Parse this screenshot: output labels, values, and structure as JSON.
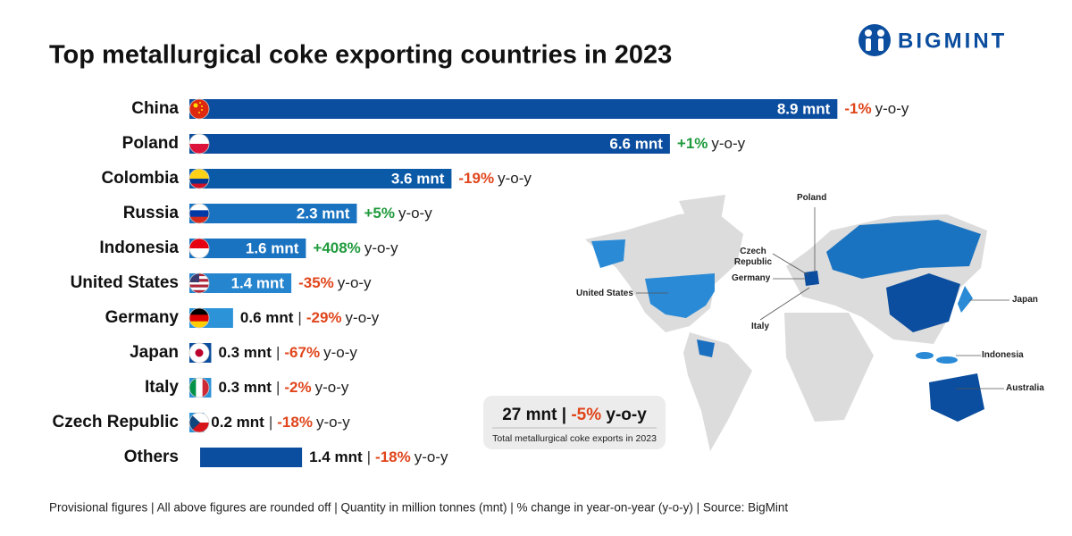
{
  "chart_data": {
    "type": "bar",
    "orientation": "horizontal",
    "title": "Top metallurgical coke exporting countries in 2023",
    "categories": [
      "China",
      "Poland",
      "Colombia",
      "Russia",
      "Indonesia",
      "United States",
      "Germany",
      "Japan",
      "Italy",
      "Czech Republic",
      "Others"
    ],
    "values": [
      8.9,
      6.6,
      3.6,
      2.3,
      1.6,
      1.4,
      0.6,
      0.3,
      0.3,
      0.2,
      1.4
    ],
    "value_labels": [
      "8.9 mnt",
      "6.6 mnt",
      "3.6 mnt",
      "2.3 mnt",
      "1.6 mnt",
      "1.4 mnt",
      "0.6 mnt",
      "0.3 mnt",
      "0.3 mnt",
      "0.2 mnt",
      "1.4 mnt"
    ],
    "label_positions": [
      "inside",
      "inside",
      "inside",
      "inside",
      "inside",
      "inside",
      "outside",
      "outside",
      "outside",
      "outside",
      "outside"
    ],
    "colors": [
      "#0b4d9e",
      "#0b4d9e",
      "#0b5aa8",
      "#1a73c0",
      "#1a73c0",
      "#2685cf",
      "#2d93d8",
      "#0b4d9e",
      "#2d93d8",
      "#2d93d8",
      "#0b4d9e"
    ],
    "yoy_values": [
      -1,
      1,
      -19,
      5,
      408,
      -35,
      -29,
      -67,
      -2,
      -18,
      -18
    ],
    "yoy_labels": [
      "-1%",
      "+1%",
      "-19%",
      "+5%",
      "+408%",
      "-35%",
      "-29%",
      "-67%",
      "-2%",
      "-18%",
      "-18%"
    ],
    "yoy_suffix": "y-o-y",
    "separator": "|",
    "positive_color": "#1f9a3c",
    "negative_color": "#e0451b"
  },
  "logo": "BIGMINT",
  "summary": {
    "total": "27 mnt",
    "separator": "|",
    "change": "-5%",
    "suffix": "y-o-y",
    "caption": "Total metallurgical coke exports in 2023"
  },
  "map": {
    "labels": [
      "Poland",
      "Czech Republic",
      "Germany",
      "United States",
      "Italy",
      "Japan",
      "Indonesia",
      "Australia"
    ]
  },
  "footer": "Provisional figures | All above figures are rounded off | Quantity in million tonnes (mnt) | % change in year-on-year (y-o-y) | Source: BigMint"
}
